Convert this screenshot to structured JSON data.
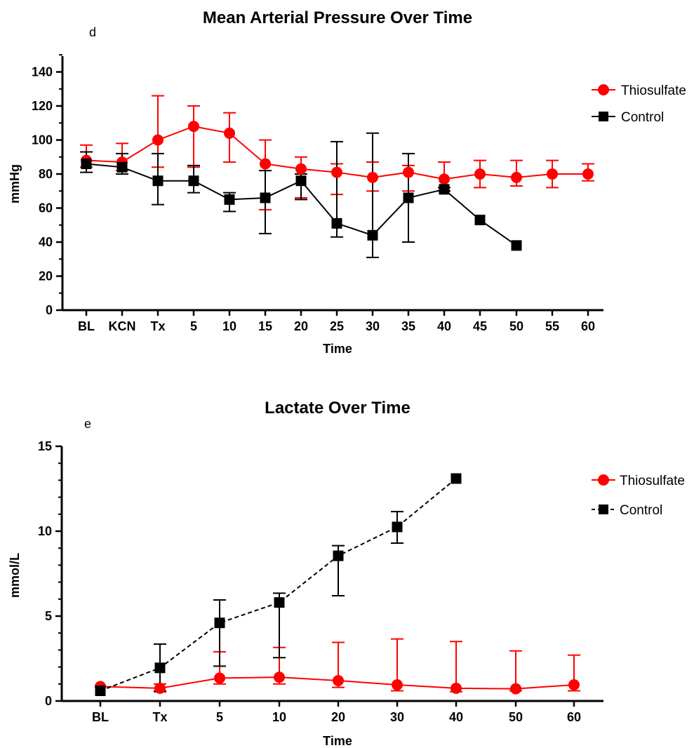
{
  "chart_data": [
    {
      "type": "line",
      "panel_label": "d",
      "title": "Mean Arterial Pressure Over Time",
      "xlabel": "Time",
      "ylabel": "mmHg",
      "ylim": [
        0,
        150
      ],
      "yticks": [
        "0",
        "20",
        "40",
        "60",
        "80",
        "100",
        "120",
        "140"
      ],
      "categories": [
        "BL",
        "KCN",
        "Tx",
        "5",
        "10",
        "15",
        "20",
        "25",
        "30",
        "35",
        "40",
        "45",
        "50",
        "55",
        "60"
      ],
      "legend_position": "top-right",
      "series": [
        {
          "name": "Thiosulfate",
          "color": "#ff0000",
          "marker": "circle",
          "line": "solid",
          "values": [
            88,
            87,
            100,
            108,
            104,
            86,
            83,
            81,
            78,
            81,
            77,
            80,
            78,
            80,
            80
          ],
          "err_upper": [
            97,
            98,
            126,
            120,
            116,
            100,
            90,
            86,
            87,
            85,
            87,
            88,
            88,
            88,
            86
          ],
          "err_lower": [
            84,
            82,
            84,
            84,
            87,
            59,
            66,
            68,
            70,
            70,
            70,
            72,
            73,
            72,
            76
          ]
        },
        {
          "name": "Control",
          "color": "#000000",
          "marker": "square",
          "line": "solid",
          "values": [
            86,
            84,
            76,
            76,
            65,
            66,
            76,
            51,
            44,
            66,
            71,
            53,
            38,
            null,
            null
          ],
          "err_upper": [
            93,
            92,
            92,
            85,
            69,
            82,
            80,
            99,
            104,
            92,
            72,
            null,
            null,
            null,
            null
          ],
          "err_lower": [
            81,
            80,
            62,
            69,
            58,
            45,
            65,
            43,
            31,
            40,
            70,
            null,
            null,
            null,
            null
          ]
        }
      ]
    },
    {
      "type": "line",
      "panel_label": "e",
      "title": "Lactate Over Time",
      "xlabel": "Time",
      "ylabel": "mmol/L",
      "ylim": [
        0,
        15
      ],
      "yticks": [
        "0",
        "5",
        "10",
        "15"
      ],
      "categories": [
        "BL",
        "Tx",
        "5",
        "10",
        "20",
        "30",
        "40",
        "50",
        "60"
      ],
      "legend_position": "top-right",
      "series": [
        {
          "name": "Thiosulfate",
          "color": "#ff0000",
          "marker": "circle",
          "line": "solid",
          "values": [
            0.85,
            0.75,
            1.35,
            1.4,
            1.2,
            0.95,
            0.75,
            0.72,
            0.95
          ],
          "err_upper": [
            null,
            1.0,
            2.9,
            3.15,
            3.45,
            3.65,
            3.5,
            2.95,
            2.7
          ],
          "err_lower": [
            null,
            0.6,
            1.0,
            1.0,
            0.8,
            0.6,
            0.55,
            0.6,
            0.6
          ]
        },
        {
          "name": "Control",
          "color": "#000000",
          "marker": "square",
          "line": "dashed",
          "values": [
            0.6,
            1.95,
            4.6,
            5.8,
            8.55,
            10.25,
            13.1,
            null,
            null
          ],
          "err_upper": [
            null,
            3.35,
            5.95,
            6.35,
            9.15,
            11.15,
            null,
            null,
            null
          ],
          "err_lower": [
            null,
            0.55,
            2.05,
            2.55,
            6.2,
            9.3,
            null,
            null,
            null
          ]
        }
      ]
    }
  ]
}
